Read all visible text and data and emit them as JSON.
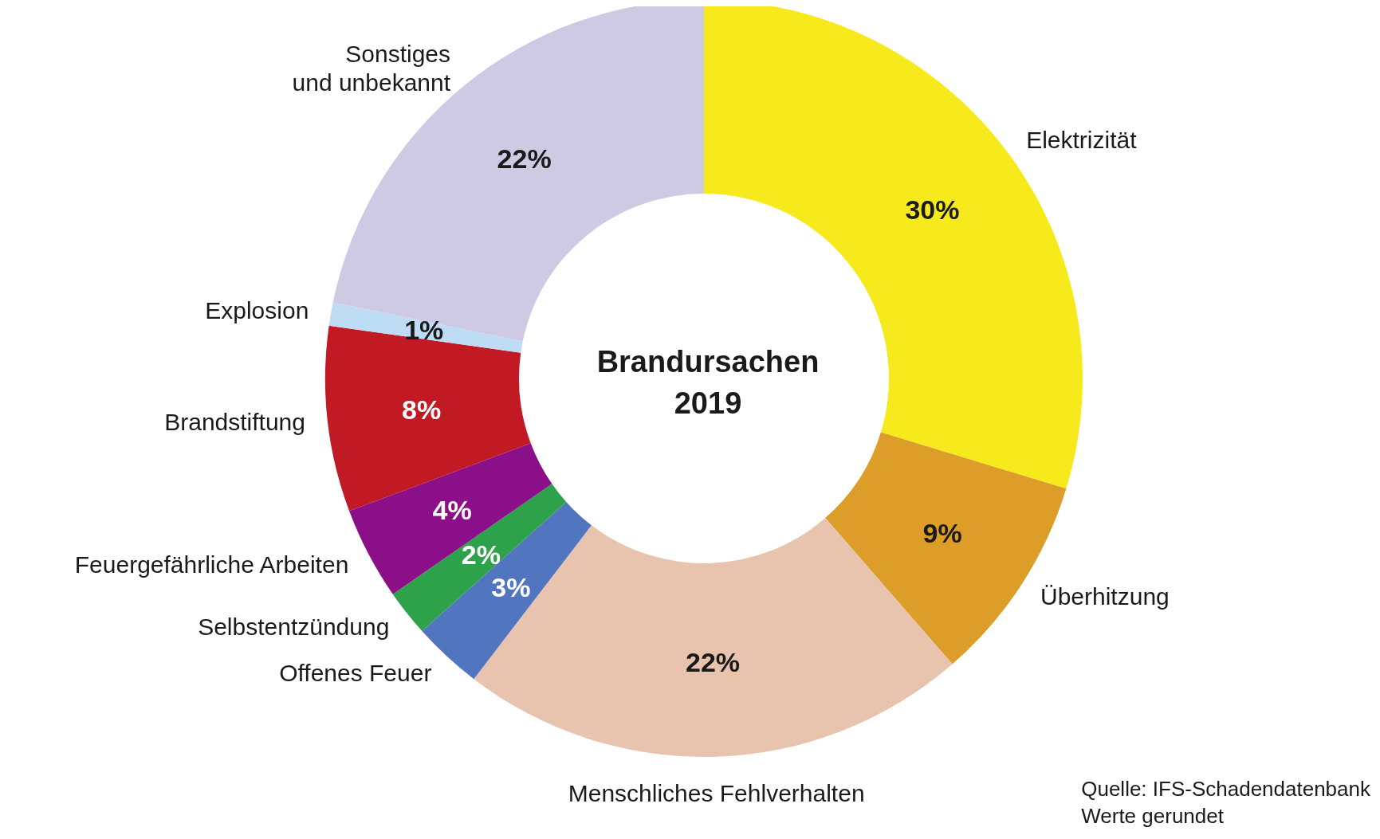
{
  "chart_data": {
    "type": "donut",
    "title": "Brandursachen\n2019",
    "categories": [
      "Elektrizität",
      "Überhitzung",
      "Menschliches Fehlverhalten",
      "Offenes Feuer",
      "Selbstentzündung",
      "Feuergefährliche Arbeiten",
      "Brandstiftung",
      "Explosion",
      "Sonstiges\nund unbekannt"
    ],
    "values": [
      30,
      9,
      22,
      3,
      2,
      4,
      8,
      1,
      22
    ],
    "colors": [
      "#f7ea1c",
      "#dc9e28",
      "#e8c4ae",
      "#5275c0",
      "#2ea24a",
      "#8a0f88",
      "#c11a24",
      "#bfdcf5",
      "#cecae3"
    ],
    "value_labels": [
      "30%",
      "9%",
      "22%",
      "3%",
      "2%",
      "4%",
      "8%",
      "1%",
      "22%"
    ],
    "legend": false,
    "annotations": [
      "Quelle: IFS-Schadendatenbank\nWerte gerundet"
    ]
  }
}
